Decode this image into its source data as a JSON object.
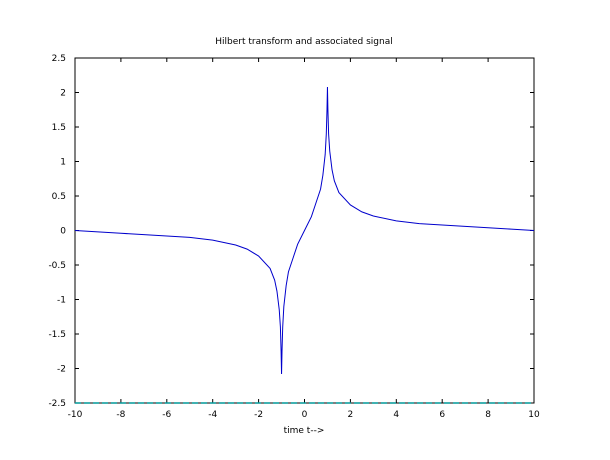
{
  "chart_data": {
    "type": "line",
    "title": "Hilbert transform and associated signal",
    "xlabel": "time t-->",
    "ylabel": "",
    "xlim": [
      -10,
      10
    ],
    "ylim": [
      -2.5,
      2.5
    ],
    "xticks": [
      "-10",
      "-8",
      "-6",
      "-4",
      "-2",
      "0",
      "2",
      "4",
      "6",
      "8",
      "10"
    ],
    "yticks": [
      "-2.5",
      "-2",
      "-1.5",
      "-1",
      "-0.5",
      "0",
      "0.5",
      "1",
      "1.5",
      "2",
      "2.5"
    ],
    "grid": false,
    "series": [
      {
        "color": "#0000cc",
        "x": [
          -10,
          -9,
          -8,
          -7,
          -6,
          -5,
          -4,
          -3,
          -2.5,
          -2,
          -1.5,
          -1.3,
          -1.2,
          -1.1,
          -1.05,
          -1.02,
          -1.0,
          -0.98,
          -0.95,
          -0.9,
          -0.8,
          -0.7,
          -0.5,
          -0.3,
          0,
          0.3,
          0.5,
          0.7,
          0.8,
          0.9,
          0.95,
          0.98,
          1.0,
          1.02,
          1.05,
          1.1,
          1.2,
          1.3,
          1.5,
          2,
          2.5,
          3,
          4,
          5,
          6,
          7,
          8,
          9,
          10
        ],
        "y": [
          0.0,
          -0.02,
          -0.04,
          -0.06,
          -0.08,
          -0.1,
          -0.14,
          -0.21,
          -0.27,
          -0.37,
          -0.55,
          -0.72,
          -0.88,
          -1.15,
          -1.4,
          -1.75,
          -2.08,
          -1.75,
          -1.4,
          -1.1,
          -0.8,
          -0.6,
          -0.4,
          -0.2,
          0.0,
          0.2,
          0.4,
          0.6,
          0.8,
          1.1,
          1.4,
          1.75,
          2.08,
          1.75,
          1.4,
          1.15,
          0.88,
          0.72,
          0.55,
          0.37,
          0.27,
          0.21,
          0.14,
          0.1,
          0.08,
          0.06,
          0.04,
          0.02,
          0.0
        ]
      },
      {
        "color": "#009999",
        "x": [
          -10,
          10
        ],
        "y": [
          -2.5,
          -2.5
        ]
      }
    ]
  }
}
